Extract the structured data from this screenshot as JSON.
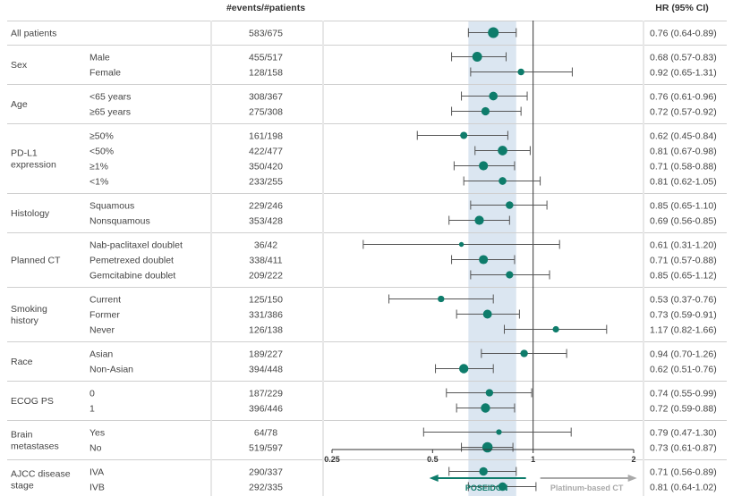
{
  "header": {
    "events_col": "#events/#patients",
    "hr_col": "HR (95% CI)"
  },
  "axis": {
    "ticks": [
      0.25,
      0.5,
      1,
      2
    ],
    "tick_labels": [
      "0.25",
      "0.5",
      "1",
      "2"
    ],
    "xlim": [
      0.25,
      2
    ],
    "scale": "log",
    "reference": 1,
    "favors_left": "POSEIDON",
    "favors_right": "Platinum-based CT"
  },
  "colors": {
    "marker": "#0e7c6b",
    "ci_band": "#dbe6f1",
    "favors_left": "#0e7c6b",
    "favors_right": "#a9a9a9"
  },
  "chart_data": {
    "type": "forest",
    "overall_ci_band": [
      0.64,
      0.89
    ],
    "groups": [
      {
        "name": "All patients",
        "rows": [
          {
            "sub": "",
            "events": "583/675",
            "hr": 0.76,
            "lo": 0.64,
            "hi": 0.89,
            "hr_text": "0.76 (0.64-0.89)"
          }
        ]
      },
      {
        "name": "Sex",
        "rows": [
          {
            "sub": "Male",
            "events": "455/517",
            "hr": 0.68,
            "lo": 0.57,
            "hi": 0.83,
            "hr_text": "0.68 (0.57-0.83)"
          },
          {
            "sub": "Female",
            "events": "128/158",
            "hr": 0.92,
            "lo": 0.65,
            "hi": 1.31,
            "hr_text": "0.92 (0.65-1.31)"
          }
        ]
      },
      {
        "name": "Age",
        "rows": [
          {
            "sub": "<65 years",
            "events": "308/367",
            "hr": 0.76,
            "lo": 0.61,
            "hi": 0.96,
            "hr_text": "0.76 (0.61-0.96)"
          },
          {
            "sub": "≥65 years",
            "events": "275/308",
            "hr": 0.72,
            "lo": 0.57,
            "hi": 0.92,
            "hr_text": "0.72 (0.57-0.92)"
          }
        ]
      },
      {
        "name": "PD-L1 expression",
        "rows": [
          {
            "sub": "≥50%",
            "events": "161/198",
            "hr": 0.62,
            "lo": 0.45,
            "hi": 0.84,
            "hr_text": "0.62 (0.45-0.84)"
          },
          {
            "sub": "<50%",
            "events": "422/477",
            "hr": 0.81,
            "lo": 0.67,
            "hi": 0.98,
            "hr_text": "0.81 (0.67-0.98)"
          },
          {
            "sub": "≥1%",
            "events": "350/420",
            "hr": 0.71,
            "lo": 0.58,
            "hi": 0.88,
            "hr_text": "0.71 (0.58-0.88)"
          },
          {
            "sub": "<1%",
            "events": "233/255",
            "hr": 0.81,
            "lo": 0.62,
            "hi": 1.05,
            "hr_text": "0.81 (0.62-1.05)"
          }
        ]
      },
      {
        "name": "Histology",
        "rows": [
          {
            "sub": "Squamous",
            "events": "229/246",
            "hr": 0.85,
            "lo": 0.65,
            "hi": 1.1,
            "hr_text": "0.85 (0.65-1.10)"
          },
          {
            "sub": "Nonsquamous",
            "events": "353/428",
            "hr": 0.69,
            "lo": 0.56,
            "hi": 0.85,
            "hr_text": "0.69 (0.56-0.85)"
          }
        ]
      },
      {
        "name": "Planned CT",
        "rows": [
          {
            "sub": "Nab-paclitaxel doublet",
            "events": "36/42",
            "hr": 0.61,
            "lo": 0.31,
            "hi": 1.2,
            "hr_text": "0.61 (0.31-1.20)"
          },
          {
            "sub": "Pemetrexed doublet",
            "events": "338/411",
            "hr": 0.71,
            "lo": 0.57,
            "hi": 0.88,
            "hr_text": "0.71 (0.57-0.88)"
          },
          {
            "sub": "Gemcitabine doublet",
            "events": "209/222",
            "hr": 0.85,
            "lo": 0.65,
            "hi": 1.12,
            "hr_text": "0.85 (0.65-1.12)"
          }
        ]
      },
      {
        "name": "Smoking history",
        "rows": [
          {
            "sub": "Current",
            "events": "125/150",
            "hr": 0.53,
            "lo": 0.37,
            "hi": 0.76,
            "hr_text": "0.53 (0.37-0.76)"
          },
          {
            "sub": "Former",
            "events": "331/386",
            "hr": 0.73,
            "lo": 0.59,
            "hi": 0.91,
            "hr_text": "0.73 (0.59-0.91)"
          },
          {
            "sub": "Never",
            "events": "126/138",
            "hr": 1.17,
            "lo": 0.82,
            "hi": 1.66,
            "hr_text": "1.17 (0.82-1.66)"
          }
        ]
      },
      {
        "name": "Race",
        "rows": [
          {
            "sub": "Asian",
            "events": "189/227",
            "hr": 0.94,
            "lo": 0.7,
            "hi": 1.26,
            "hr_text": "0.94 (0.70-1.26)"
          },
          {
            "sub": "Non-Asian",
            "events": "394/448",
            "hr": 0.62,
            "lo": 0.51,
            "hi": 0.76,
            "hr_text": "0.62 (0.51-0.76)"
          }
        ]
      },
      {
        "name": "ECOG PS",
        "rows": [
          {
            "sub": "0",
            "events": "187/229",
            "hr": 0.74,
            "lo": 0.55,
            "hi": 0.99,
            "hr_text": "0.74 (0.55-0.99)"
          },
          {
            "sub": "1",
            "events": "396/446",
            "hr": 0.72,
            "lo": 0.59,
            "hi": 0.88,
            "hr_text": "0.72 (0.59-0.88)"
          }
        ]
      },
      {
        "name": "Brain metastases",
        "rows": [
          {
            "sub": "Yes",
            "events": "64/78",
            "hr": 0.79,
            "lo": 0.47,
            "hi": 1.3,
            "hr_text": "0.79 (0.47-1.30)"
          },
          {
            "sub": "No",
            "events": "519/597",
            "hr": 0.73,
            "lo": 0.61,
            "hi": 0.87,
            "hr_text": "0.73 (0.61-0.87)"
          }
        ]
      },
      {
        "name": "AJCC disease stage",
        "rows": [
          {
            "sub": "IVA",
            "events": "290/337",
            "hr": 0.71,
            "lo": 0.56,
            "hi": 0.89,
            "hr_text": "0.71 (0.56-0.89)"
          },
          {
            "sub": "IVB",
            "events": "292/335",
            "hr": 0.81,
            "lo": 0.64,
            "hi": 1.02,
            "hr_text": "0.81 (0.64-1.02)"
          }
        ]
      }
    ]
  }
}
